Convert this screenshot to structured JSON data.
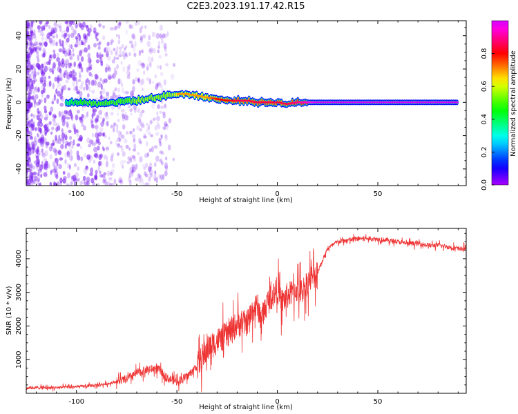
{
  "title": "C2E3.2023.191.17.42.R15",
  "colors": {
    "snr_line": "#ee3333",
    "spectrogram_points": "#7a1ff0",
    "frame": "#000000"
  },
  "chart_data": [
    {
      "type": "heatmap",
      "xlabel": "Height of straight line (km)",
      "ylabel": "Frequency (Hz)",
      "xlim": [
        -125,
        94
      ],
      "ylim": [
        -50,
        49
      ],
      "xticks": [
        -100,
        -50,
        0,
        50
      ],
      "yticks": [
        -40,
        -20,
        0,
        20,
        40
      ],
      "colorbar": {
        "label": "Normalized spectral amplitude",
        "range": [
          0,
          1
        ],
        "ticks": [
          0.0,
          0.2,
          0.4,
          0.6,
          0.8
        ],
        "colormap": "hsv-rainbow (purple-blue-cyan-green-yellow-red-pink)"
      },
      "ridge": {
        "x": [
          -105,
          -100,
          -95,
          -90,
          -85,
          -80,
          -75,
          -70,
          -65,
          -60,
          -55,
          -50,
          -45,
          -40,
          -35,
          -30,
          -25,
          -20,
          -15,
          -10,
          -5,
          0,
          5,
          10,
          15,
          20,
          30,
          40,
          50,
          60,
          70,
          80,
          90
        ],
        "freq": [
          0,
          0,
          0,
          -1,
          0,
          0,
          1,
          1,
          2,
          3,
          4,
          5,
          5,
          4,
          3,
          2,
          1,
          1,
          1,
          0,
          0,
          0,
          -1,
          0,
          0,
          0,
          0,
          0,
          0,
          0,
          0,
          0,
          0
        ],
        "amplitude": [
          0.3,
          0.4,
          0.5,
          0.5,
          0.5,
          0.5,
          0.5,
          0.6,
          0.6,
          0.6,
          0.6,
          0.7,
          0.7,
          0.7,
          0.7,
          0.8,
          0.8,
          0.85,
          0.85,
          0.85,
          0.85,
          0.85,
          0.85,
          0.9,
          0.95,
          1,
          1,
          1,
          1,
          1,
          1,
          1,
          1
        ]
      },
      "noise": "scattered low-amplitude (0.1-0.3) spectral points across all frequencies for heights below about -55 km, densest below -85 km"
    },
    {
      "type": "line",
      "xlabel": "Height of straight line (km)",
      "ylabel": "SNR (10 * v/v)",
      "xlim": [
        -125,
        94
      ],
      "ylim": [
        0,
        4900
      ],
      "xticks": [
        -100,
        -50,
        0,
        50
      ],
      "yticks": [
        1000,
        2000,
        3000,
        4000
      ],
      "series": [
        {
          "x": [
            -125,
            -115,
            -105,
            -95,
            -85,
            -75,
            -70,
            -65,
            -60,
            -55,
            -50,
            -45,
            -40,
            -37,
            -35,
            -30,
            -25,
            -20,
            -15,
            -12,
            -10,
            -8,
            -5,
            0,
            2,
            5,
            10,
            12,
            15,
            20,
            25,
            30,
            35,
            40,
            45,
            50,
            55,
            60,
            65,
            70,
            75,
            80,
            85,
            90,
            94
          ],
          "y": [
            170,
            160,
            180,
            210,
            280,
            420,
            600,
            700,
            750,
            450,
            350,
            500,
            800,
            1100,
            1300,
            1550,
            1750,
            2050,
            2100,
            2500,
            2600,
            2200,
            2700,
            3100,
            2700,
            2900,
            3100,
            3000,
            3300,
            3600,
            4300,
            4500,
            4550,
            4600,
            4600,
            4580,
            4550,
            4500,
            4450,
            4450,
            4400,
            4400,
            4350,
            4300,
            4300
          ]
        }
      ]
    }
  ]
}
